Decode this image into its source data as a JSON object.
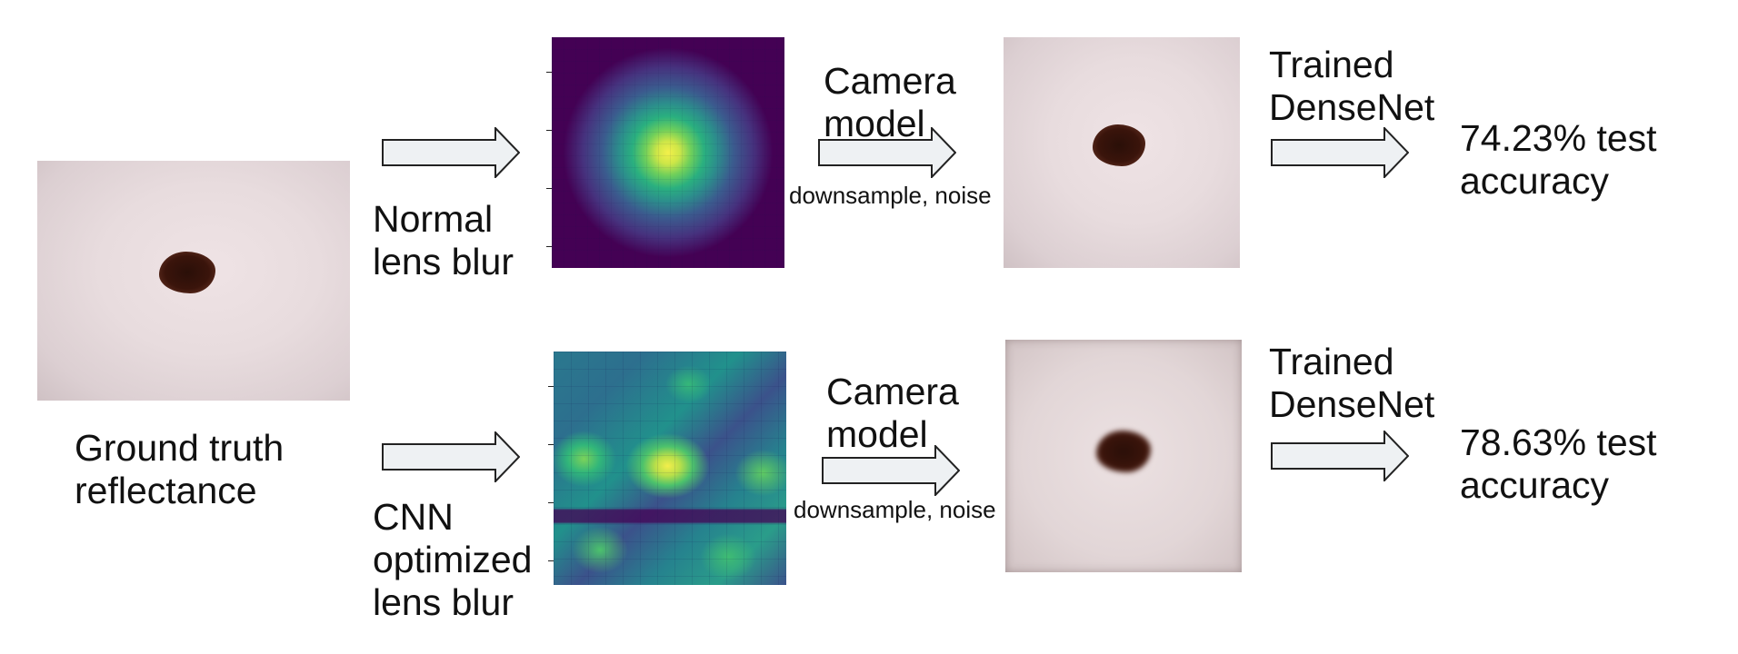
{
  "ground_truth": {
    "label_line1": "Ground truth",
    "label_line2": "reflectance"
  },
  "top_row": {
    "blur_label_line1": "Normal",
    "blur_label_line2": "lens blur",
    "camera_label_line1": "Camera",
    "camera_label_line2": "model",
    "camera_sub_label": "downsample, noise",
    "classifier_label_line1": "Trained",
    "classifier_label_line2": "DenseNet",
    "result_line1": "74.23% test",
    "result_line2": "accuracy"
  },
  "bottom_row": {
    "blur_label_line1": "CNN",
    "blur_label_line2": "optimized",
    "blur_label_line3": "lens blur",
    "camera_label_line1": "Camera",
    "camera_label_line2": "model",
    "camera_sub_label": "downsample, noise",
    "classifier_label_line1": "Trained",
    "classifier_label_line2": "DenseNet",
    "result_line1": "78.63% test",
    "result_line2": "accuracy"
  },
  "colors": {
    "arrow_fill": "#eef1f3",
    "arrow_stroke": "#222222",
    "colormap": "viridis"
  }
}
